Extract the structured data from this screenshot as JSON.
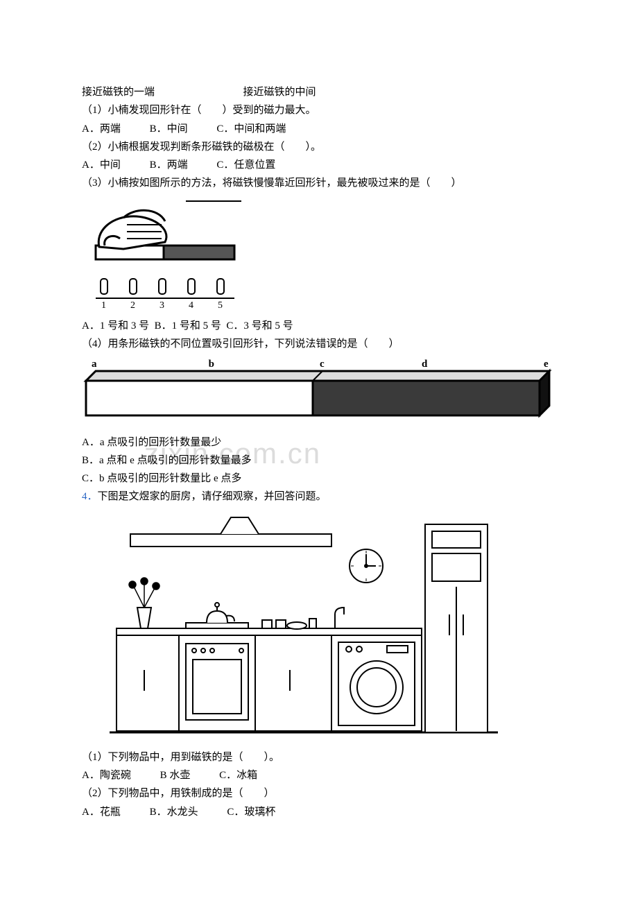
{
  "watermark": "zixin.com.cn",
  "lines": {
    "row1_a": "接近磁铁的一端",
    "row1_b": "接近磁铁的中间",
    "q1": "（1）小楠发现回形针在（　　）受到的磁力最大。",
    "q1_a": "A．两端",
    "q1_b": "B．中间",
    "q1_c": "C．中间和两端",
    "q2": "（2）小楠根据发现判断条形磁铁的磁极在（　　）。",
    "q2_a": "A．中间",
    "q2_b": "B．两端",
    "q2_c": "C．任意位置",
    "q3": "（3）小楠按如图所示的方法，将磁铁慢慢靠近回形针，最先被吸过来的是（　　）",
    "q3_a": "A．1 号和 3 号",
    "q3_b": "B．1 号和 5 号",
    "q3_c": "C．3 号和 5 号",
    "q4": "（4）用条形磁铁的不同位置吸引回形针，下列说法错误的是（　　）",
    "q4_o_a": "A．a 点吸引的回形针数量最少",
    "q4_o_b": "B．a 点和 e 点吸引的回形针数量最多",
    "q4_o_c": "C．b 点吸引的回形针数量比 e 点多",
    "big4_num": "4．",
    "big4": "下图是文煜家的厨房，请仔细观察，并回答问题。",
    "bq1": "（1）下列物品中，用到磁铁的是（　　）。",
    "bq1_a": "A．陶瓷碗",
    "bq1_b": "B 水壶",
    "bq1_c": "C．冰箱",
    "bq2": "（2）下列物品中，用铁制成的是（　　）",
    "bq2_a": "A．花瓶",
    "bq2_b": "B．水龙头",
    "bq2_c": "C．玻璃杯"
  },
  "bar_diagram": {
    "labels": [
      "a",
      "b",
      "c",
      "d",
      "e"
    ],
    "fill_left": "#ffffff",
    "fill_right": "#3a3a3a",
    "stroke": "#000000",
    "font_size": 15
  },
  "hand_diagram": {
    "pins": [
      "1",
      "2",
      "3",
      "4",
      "5"
    ],
    "stroke": "#000000"
  }
}
